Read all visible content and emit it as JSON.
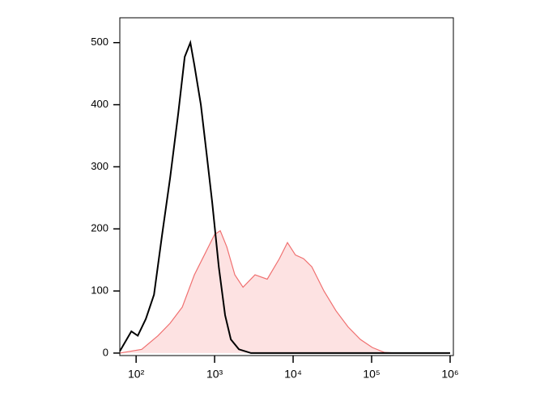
{
  "chart_data": {
    "type": "histogram-overlay",
    "xscale": "log",
    "xlim": [
      62,
      1100000
    ],
    "ylim": [
      -4,
      540
    ],
    "xticks": [
      {
        "value": 100,
        "label": "10²"
      },
      {
        "value": 1000,
        "label": "10³"
      },
      {
        "value": 10000,
        "label": "10⁴"
      },
      {
        "value": 100000,
        "label": "10⁵"
      },
      {
        "value": 1000000,
        "label": "10⁶"
      }
    ],
    "yticks": [
      0,
      100,
      200,
      300,
      400,
      500
    ],
    "series": [
      {
        "color": "#000000",
        "fill": "none",
        "x": [
          62,
          87,
          105,
          133,
          169,
          214,
          271,
          344,
          416,
          491,
          552,
          668,
          789,
          931,
          1130,
          1360,
          1610,
          2040,
          2910,
          1000000
        ],
        "values": [
          3,
          35,
          28,
          55,
          94,
          190,
          282,
          386,
          477,
          500,
          464,
          400,
          322,
          243,
          139,
          61,
          22,
          6,
          0,
          0
        ]
      },
      {
        "color": "#f07070",
        "fill": "#fde2e2",
        "x": [
          62,
          118,
          190,
          271,
          387,
          552,
          789,
          1000,
          1180,
          1430,
          1810,
          2300,
          3270,
          4680,
          6680,
          8470,
          10700,
          13600,
          17300,
          24700,
          35200,
          50200,
          71800,
          102000,
          146000,
          209000,
          1000000
        ],
        "values": [
          0,
          6,
          28,
          48,
          74,
          126,
          165,
          191,
          197,
          171,
          126,
          106,
          126,
          119,
          152,
          178,
          158,
          152,
          139,
          100,
          68,
          42,
          22,
          9,
          1,
          0,
          0
        ]
      }
    ]
  }
}
